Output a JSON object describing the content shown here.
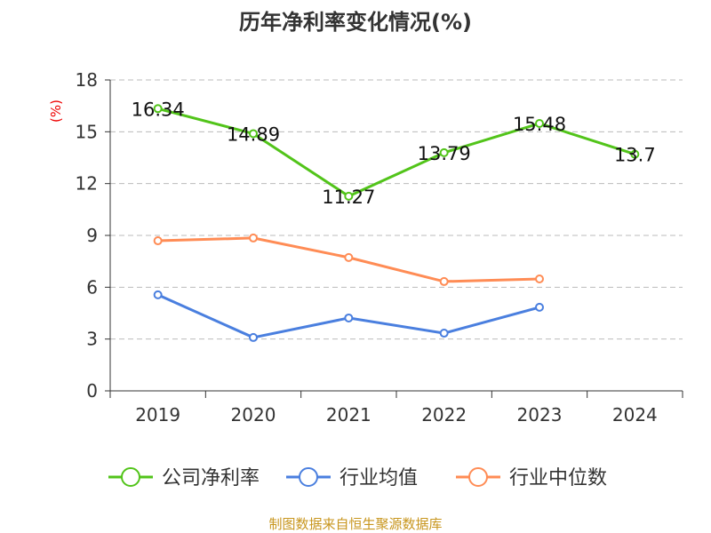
{
  "chart_data": {
    "type": "line",
    "title": "历年净利率变化情况(%)",
    "ylabel": "(%)",
    "xlabel": "",
    "categories": [
      "2019",
      "2020",
      "2021",
      "2022",
      "2023",
      "2024"
    ],
    "ylim": [
      0,
      18
    ],
    "yticks": [
      0,
      3,
      6,
      9,
      12,
      15,
      18
    ],
    "grid": true,
    "legend_position": "bottom",
    "series": [
      {
        "name": "公司净利率",
        "color": "#52c41a",
        "values": [
          16.34,
          14.89,
          11.27,
          13.79,
          15.48,
          13.7
        ],
        "labels": [
          "16.34",
          "14.89",
          "11.27",
          "13.79",
          "15.48",
          "13.7"
        ]
      },
      {
        "name": "行业均值",
        "color": "#4a7fdf",
        "values": [
          5.56,
          3.09,
          4.22,
          3.34,
          4.84,
          null
        ]
      },
      {
        "name": "行业中位数",
        "color": "#ff8c55",
        "values": [
          8.69,
          8.85,
          7.72,
          6.33,
          6.48,
          null
        ]
      }
    ]
  },
  "footer": "制图数据来自恒生聚源数据库"
}
